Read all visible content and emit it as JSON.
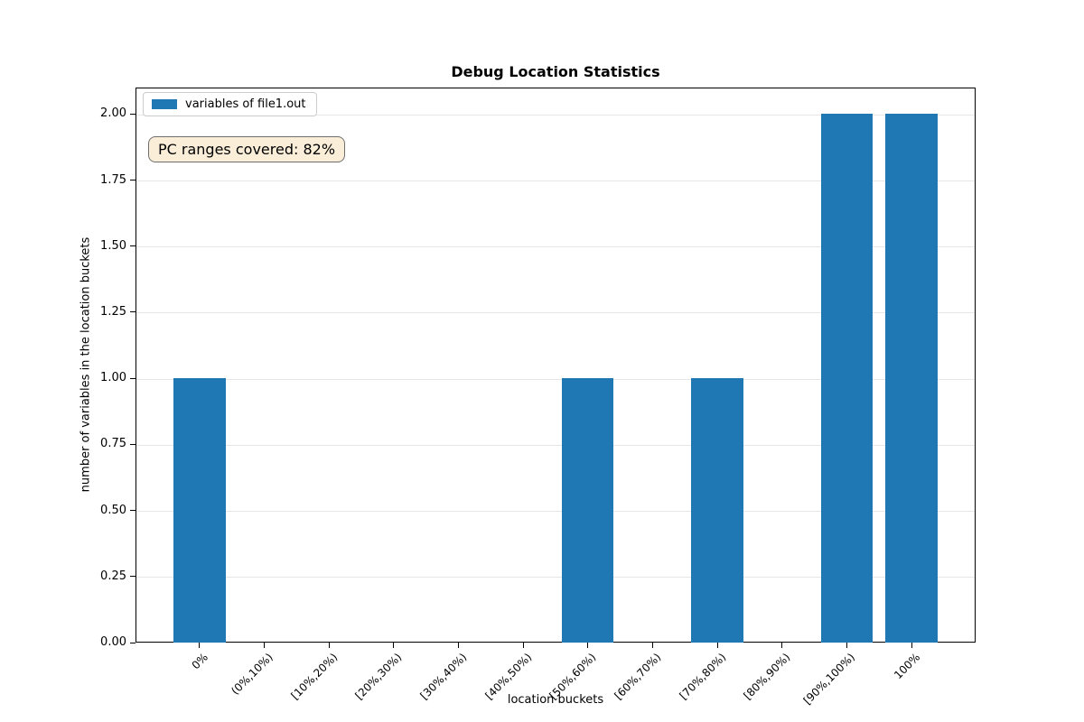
{
  "figure": {
    "annotation_style": {
      "bg": "#faeed9",
      "border": "#6e6e6e"
    },
    "grid_color": "#e6e6e6"
  },
  "chart_data": {
    "type": "bar",
    "title": "Debug Location Statistics",
    "xlabel": "location buckets",
    "ylabel": "number of variables in the location buckets",
    "categories": [
      "0%",
      "(0%,10%)",
      "[10%,20%)",
      "[20%,30%)",
      "[30%,40%)",
      "[40%,50%)",
      "[50%,60%)",
      "[60%,70%)",
      "[70%,80%)",
      "[80%,90%)",
      "[90%,100%)",
      "100%"
    ],
    "series": [
      {
        "name": "variables of file1.out",
        "values": [
          1,
          0,
          0,
          0,
          0,
          0,
          1,
          0,
          1,
          0,
          2,
          2
        ]
      }
    ],
    "bar_color": "#1f77b4",
    "bar_width_fraction": 0.8,
    "ylim": [
      0,
      2.1
    ],
    "yticks": [
      0,
      0.25,
      0.5,
      0.75,
      1,
      1.25,
      1.5,
      1.75,
      2
    ],
    "ytick_labels": [
      "0.00",
      "0.25",
      "0.50",
      "0.75",
      "1.00",
      "1.25",
      "1.50",
      "1.75",
      "2.00"
    ],
    "grid": "horizontal",
    "legend_position": "upper left",
    "annotation": "PC ranges covered: 82%"
  }
}
